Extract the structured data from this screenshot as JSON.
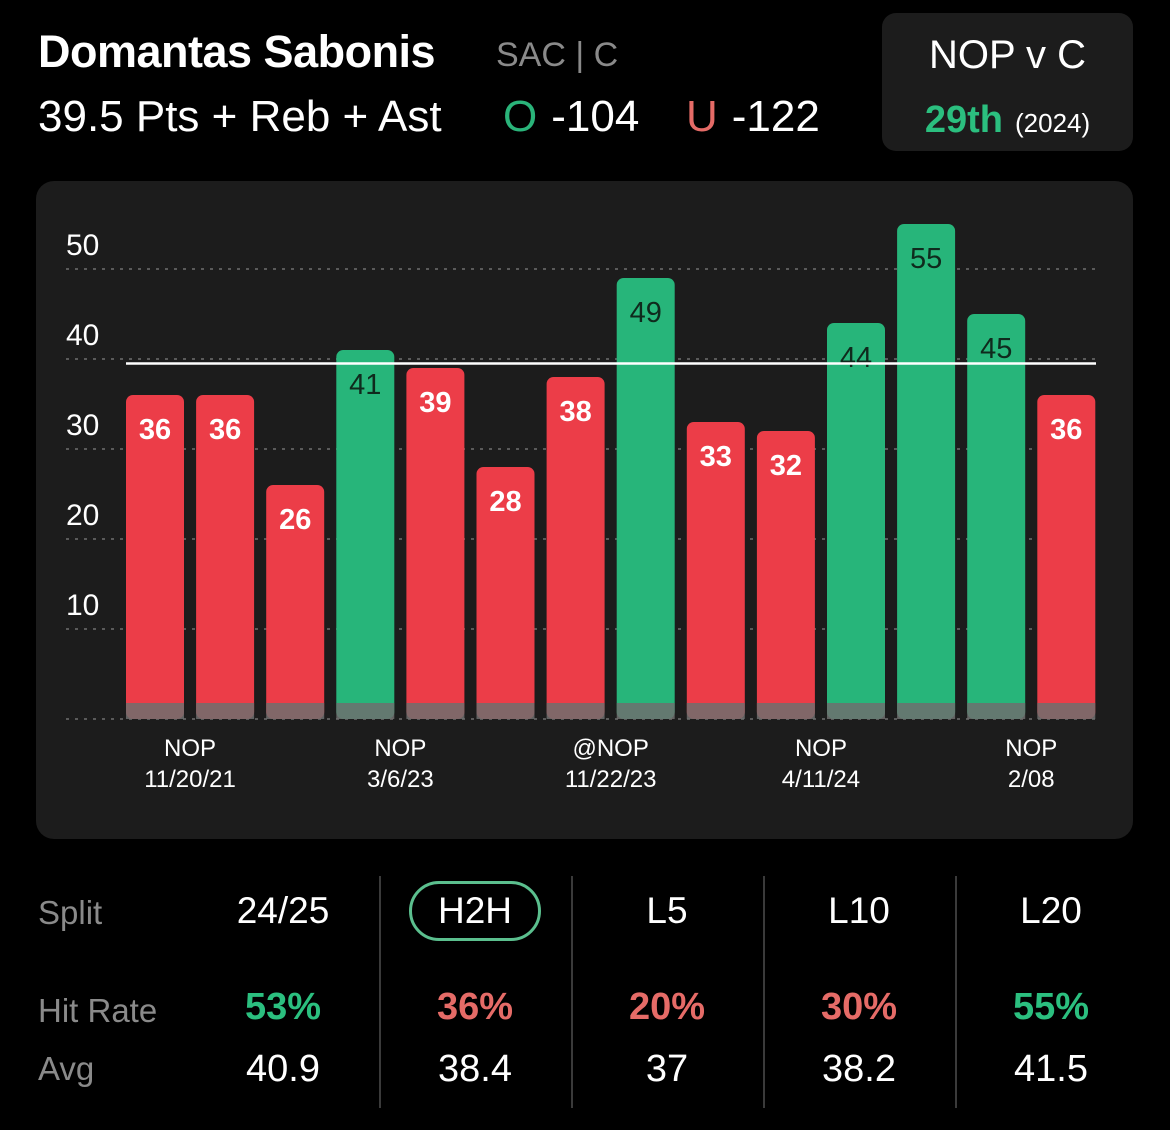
{
  "header": {
    "player_name": "Domantas Sabonis",
    "team_pos": "SAC | C",
    "prop_line": "39.5 Pts + Reb + Ast",
    "over_label": "O",
    "over_odds": "-104",
    "under_label": "U",
    "under_odds": "-122"
  },
  "matchup": {
    "title": "NOP v C",
    "rank": "29th",
    "year": "(2024)"
  },
  "colors": {
    "over": "#27b57a",
    "under": "#ec3d48",
    "line": "#ffffff",
    "card": "#1c1c1c"
  },
  "chart_data": {
    "type": "bar",
    "line_value": 39.5,
    "ylim": [
      0,
      60
    ],
    "yticks": [
      10,
      20,
      30,
      40,
      50
    ],
    "grid": true,
    "values": [
      36,
      36,
      26,
      41,
      39,
      28,
      38,
      49,
      33,
      32,
      44,
      55,
      45,
      36
    ],
    "results": [
      "under",
      "under",
      "under",
      "over",
      "under",
      "under",
      "under",
      "over",
      "under",
      "under",
      "over",
      "over",
      "over",
      "under"
    ],
    "x_labels": [
      {
        "index": 0.5,
        "opp": "NOP",
        "date": "11/20/21"
      },
      {
        "index": 3.5,
        "opp": "NOP",
        "date": "3/6/23"
      },
      {
        "index": 6.5,
        "opp": "@NOP",
        "date": "11/22/23"
      },
      {
        "index": 9.5,
        "opp": "NOP",
        "date": "4/11/24"
      },
      {
        "index": 12.5,
        "opp": "NOP",
        "date": "2/08"
      }
    ]
  },
  "stats": {
    "split_label": "Split",
    "hit_rate_label": "Hit Rate",
    "avg_label": "Avg",
    "columns": [
      {
        "name": "24/25",
        "hit_rate": "53%",
        "avg": "40.9",
        "hit_good": true,
        "selected": false
      },
      {
        "name": "H2H",
        "hit_rate": "36%",
        "avg": "38.4",
        "hit_good": false,
        "selected": true
      },
      {
        "name": "L5",
        "hit_rate": "20%",
        "avg": "37",
        "hit_good": false,
        "selected": false
      },
      {
        "name": "L10",
        "hit_rate": "30%",
        "avg": "38.2",
        "hit_good": false,
        "selected": false
      },
      {
        "name": "L20",
        "hit_rate": "55%",
        "avg": "41.5",
        "hit_good": true,
        "selected": false
      }
    ]
  }
}
